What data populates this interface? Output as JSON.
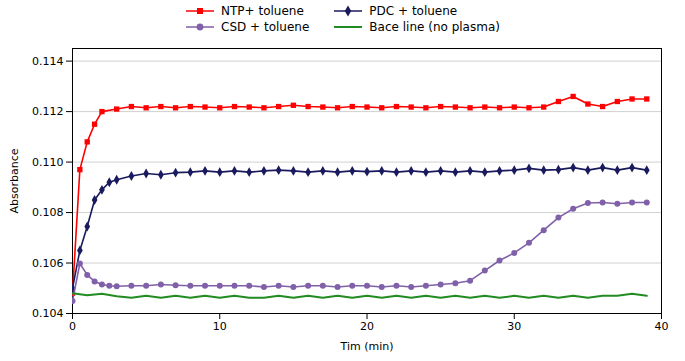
{
  "chart_data": {
    "type": "line",
    "xlabel": "Tim (min)",
    "ylabel": "Absorbance",
    "xlim": [
      0,
      40
    ],
    "ylim": [
      0.104,
      0.1145
    ],
    "xticks": [
      0,
      10,
      20,
      30,
      40
    ],
    "yticks": [
      0.104,
      0.106,
      0.108,
      {
        "value": 0.11,
        "label": "0.110"
      },
      0.112,
      0.114
    ],
    "grid": "y",
    "legend": "top",
    "series": [
      {
        "name": "NTP+ toluene",
        "color": "#ff0000",
        "marker": "square",
        "x": [
          0,
          0.5,
          1,
          1.5,
          2,
          3,
          4,
          5,
          6,
          7,
          8,
          9,
          10,
          11,
          12,
          13,
          14,
          15,
          16,
          17,
          18,
          19,
          20,
          21,
          22,
          23,
          24,
          25,
          26,
          27,
          28,
          29,
          30,
          31,
          32,
          33,
          34,
          35,
          36,
          37,
          38,
          39
        ],
        "values": [
          0.1048,
          0.1097,
          0.1108,
          0.1115,
          0.112,
          0.1121,
          0.1122,
          0.11215,
          0.1122,
          0.11215,
          0.1122,
          0.11218,
          0.11215,
          0.1122,
          0.11218,
          0.11215,
          0.1122,
          0.11225,
          0.1122,
          0.11218,
          0.11215,
          0.1122,
          0.11218,
          0.11215,
          0.1122,
          0.11218,
          0.11215,
          0.1122,
          0.11218,
          0.11215,
          0.11218,
          0.11215,
          0.11218,
          0.11215,
          0.11218,
          0.1124,
          0.1126,
          0.1123,
          0.1122,
          0.1124,
          0.1125,
          0.1125
        ]
      },
      {
        "name": "PDC + toluene",
        "color": "#1a1a5e",
        "marker": "diamond",
        "x": [
          0,
          0.5,
          1,
          1.5,
          2,
          2.5,
          3,
          4,
          5,
          6,
          7,
          8,
          9,
          10,
          11,
          12,
          13,
          14,
          15,
          16,
          17,
          18,
          19,
          20,
          21,
          22,
          23,
          24,
          25,
          26,
          27,
          28,
          29,
          30,
          31,
          32,
          33,
          34,
          35,
          36,
          37,
          38,
          39
        ],
        "values": [
          0.105,
          0.1065,
          0.10745,
          0.1085,
          0.1089,
          0.1092,
          0.1093,
          0.10945,
          0.10955,
          0.1095,
          0.10958,
          0.1096,
          0.10965,
          0.1096,
          0.10965,
          0.1096,
          0.10965,
          0.10968,
          0.10965,
          0.1096,
          0.10965,
          0.1096,
          0.10965,
          0.10962,
          0.10965,
          0.1096,
          0.10965,
          0.1096,
          0.10965,
          0.1096,
          0.10965,
          0.1096,
          0.10965,
          0.10968,
          0.10975,
          0.10968,
          0.1097,
          0.10978,
          0.10968,
          0.10978,
          0.10968,
          0.10978,
          0.10968
        ]
      },
      {
        "name": "CSD + toluene",
        "color": "#8060a8",
        "marker": "circle",
        "x": [
          0,
          0.5,
          1,
          1.5,
          2,
          2.5,
          3,
          4,
          5,
          6,
          7,
          8,
          9,
          10,
          11,
          12,
          13,
          14,
          15,
          16,
          17,
          18,
          19,
          20,
          21,
          22,
          23,
          24,
          25,
          26,
          27,
          28,
          29,
          30,
          31,
          32,
          33,
          34,
          35,
          36,
          37,
          38,
          39
        ],
        "values": [
          0.1045,
          0.10598,
          0.10553,
          0.10527,
          0.10515,
          0.1051,
          0.10508,
          0.1051,
          0.1051,
          0.10515,
          0.10512,
          0.1051,
          0.1051,
          0.1051,
          0.1051,
          0.1051,
          0.10505,
          0.1051,
          0.10505,
          0.1051,
          0.1051,
          0.10505,
          0.1051,
          0.1051,
          0.10505,
          0.1051,
          0.10505,
          0.1051,
          0.10515,
          0.1052,
          0.1053,
          0.1057,
          0.1061,
          0.1064,
          0.1068,
          0.1073,
          0.1078,
          0.10815,
          0.10838,
          0.1084,
          0.10835,
          0.1084,
          0.1084
        ]
      },
      {
        "name": "Bace line (no plasma)",
        "color": "#228b22",
        "x": [
          0,
          1,
          2,
          3,
          4,
          5,
          6,
          7,
          8,
          9,
          10,
          11,
          12,
          13,
          14,
          15,
          16,
          17,
          18,
          19,
          20,
          21,
          22,
          23,
          24,
          25,
          26,
          27,
          28,
          29,
          30,
          31,
          32,
          33,
          34,
          35,
          36,
          37,
          38,
          39
        ],
        "values": [
          0.1048,
          0.10472,
          0.10478,
          0.10468,
          0.10462,
          0.1047,
          0.10462,
          0.1047,
          0.10462,
          0.1047,
          0.10462,
          0.1047,
          0.10462,
          0.10462,
          0.1047,
          0.10462,
          0.1047,
          0.10462,
          0.1047,
          0.10462,
          0.1047,
          0.10462,
          0.1047,
          0.10462,
          0.1047,
          0.10462,
          0.1047,
          0.10462,
          0.1047,
          0.10462,
          0.1047,
          0.10462,
          0.1047,
          0.10462,
          0.1047,
          0.10462,
          0.1047,
          0.1047,
          0.10478,
          0.1047
        ]
      }
    ]
  }
}
